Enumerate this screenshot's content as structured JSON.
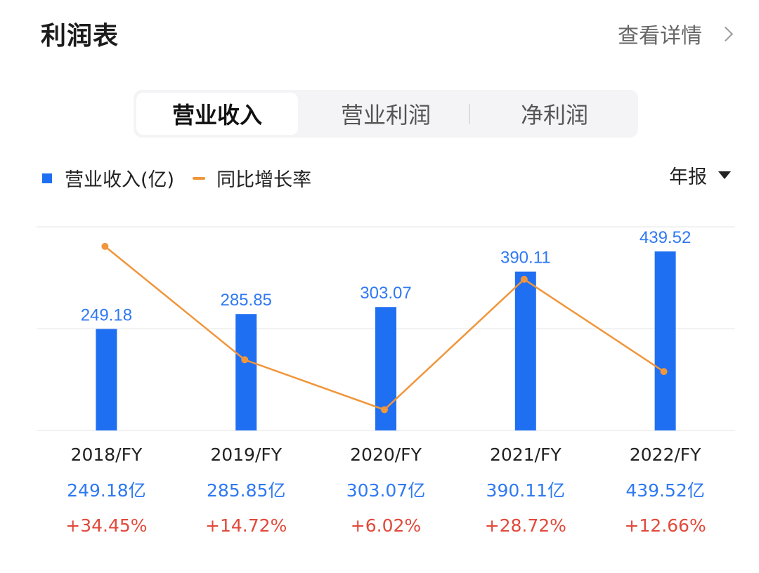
{
  "header": {
    "title": "利润表",
    "detail_label": "查看详情"
  },
  "tabs": [
    {
      "label": "营业收入",
      "active": true
    },
    {
      "label": "营业利润",
      "active": false
    },
    {
      "label": "净利润",
      "active": false
    }
  ],
  "legend": {
    "bar_label": "营业收入(亿)",
    "line_label": "同比增长率"
  },
  "period_selector": "年报",
  "colors": {
    "bar": "#1f6ff2",
    "line": "#f0963b",
    "value_text": "#2f79f2",
    "growth_text": "#e04a3b"
  },
  "chart_data": {
    "type": "bar",
    "categories": [
      "2018/FY",
      "2019/FY",
      "2020/FY",
      "2021/FY",
      "2022/FY"
    ],
    "series": [
      {
        "name": "营业收入(亿)",
        "type": "bar",
        "values": [
          249.18,
          285.85,
          303.07,
          390.11,
          439.52
        ]
      },
      {
        "name": "同比增长率",
        "type": "line",
        "values": [
          34.45,
          14.72,
          6.02,
          28.72,
          12.66
        ]
      }
    ],
    "bar_labels": [
      "249.18",
      "285.85",
      "303.07",
      "390.11",
      "439.52"
    ],
    "value_labels": [
      "249.18亿",
      "285.85亿",
      "303.07亿",
      "390.11亿",
      "439.52亿"
    ],
    "growth_labels": [
      "+34.45%",
      "+14.72%",
      "+6.02%",
      "+28.72%",
      "+12.66%"
    ],
    "ylim": [
      0,
      500
    ],
    "grid": true
  }
}
